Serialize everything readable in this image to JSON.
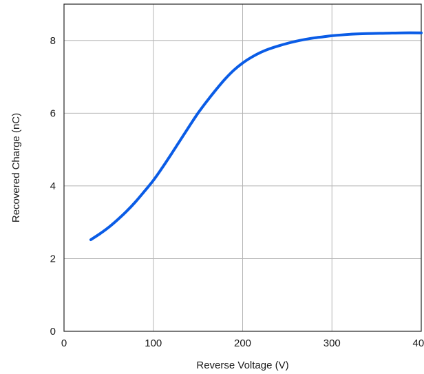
{
  "chart_data": {
    "type": "line",
    "title": "",
    "xlabel": "Reverse Voltage (V)",
    "ylabel": "Recovered Charge (nC)",
    "xlim": [
      0,
      400
    ],
    "ylim": [
      0,
      9
    ],
    "x_ticks": [
      0,
      100,
      200,
      300,
      400
    ],
    "y_ticks": [
      0,
      2,
      4,
      6,
      8
    ],
    "grid": true,
    "legend": "none",
    "series": [
      {
        "color": "#0a5ce6",
        "x": [
          30,
          40,
          50,
          60,
          70,
          80,
          90,
          100,
          110,
          120,
          130,
          140,
          150,
          160,
          170,
          180,
          190,
          200,
          210,
          220,
          230,
          240,
          250,
          260,
          270,
          280,
          290,
          300,
          320,
          340,
          360,
          380,
          400
        ],
        "y": [
          2.52,
          2.68,
          2.86,
          3.07,
          3.3,
          3.56,
          3.85,
          4.15,
          4.5,
          4.87,
          5.25,
          5.63,
          6.0,
          6.33,
          6.64,
          6.93,
          7.18,
          7.38,
          7.54,
          7.67,
          7.77,
          7.85,
          7.92,
          7.98,
          8.03,
          8.07,
          8.1,
          8.13,
          8.17,
          8.19,
          8.2,
          8.21,
          8.21
        ]
      }
    ]
  }
}
